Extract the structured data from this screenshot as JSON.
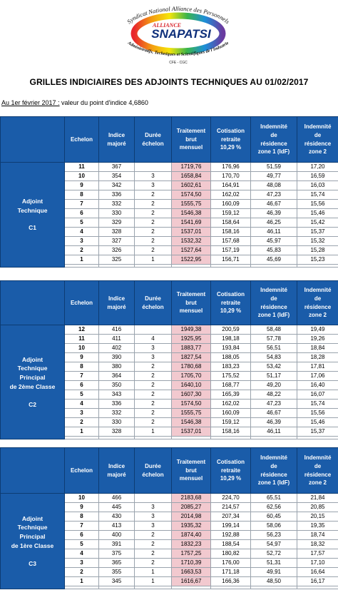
{
  "logo": {
    "top_text": "Syndicat National Alliance des Personnels",
    "brand_small": "ALLIANCE",
    "brand": "SNAPATSI",
    "arc_text": "Administratifs, Techniques et Scientifiques de l'Industrie",
    "affiliation": "CFE - CGC",
    "colors": [
      "#e8262c",
      "#f39c12",
      "#f5e50a",
      "#3bb54a",
      "#1c8fd8",
      "#6a3ba0"
    ]
  },
  "page_title": "GRILLES INDICIAIRES DES ADJOINTS TECHNIQUES AU 01/02/2017",
  "subtitle": {
    "date": "Au 1er février 2017 :",
    "text": " valeur du point d'indice 4,6860"
  },
  "header_labels": {
    "echelon": "Echelon",
    "indice": [
      "Indice",
      "majoré"
    ],
    "duree": [
      "Durée",
      "échelon"
    ],
    "traitement": [
      "Traitement",
      "brut",
      "mensuel"
    ],
    "cotisation": [
      "Cotisation",
      "retraite",
      "10,29 %"
    ],
    "idf": [
      "Indemnité",
      "de",
      "résidence",
      "zone 1 (IdF)"
    ],
    "zone2": [
      "Indemnité",
      "de",
      "résidence",
      "zone 2"
    ]
  },
  "colors": {
    "header_blue": "#1a5ca9",
    "traitement_pink": "#f2c9cf"
  },
  "grids": [
    {
      "grade_lines": [
        "Adjoint",
        "Technique"
      ],
      "grade_code": "C1",
      "rows": [
        {
          "echelon": "11",
          "indice": "367",
          "duree": "",
          "traitement": "1719,76",
          "cotisation": "176,96",
          "idf": "51,59",
          "zone2": "17,20"
        },
        {
          "echelon": "10",
          "indice": "354",
          "duree": "3",
          "traitement": "1658,84",
          "cotisation": "170,70",
          "idf": "49,77",
          "zone2": "16,59"
        },
        {
          "echelon": "9",
          "indice": "342",
          "duree": "3",
          "traitement": "1602,61",
          "cotisation": "164,91",
          "idf": "48,08",
          "zone2": "16,03"
        },
        {
          "echelon": "8",
          "indice": "336",
          "duree": "2",
          "traitement": "1574,50",
          "cotisation": "162,02",
          "idf": "47,23",
          "zone2": "15,74"
        },
        {
          "echelon": "7",
          "indice": "332",
          "duree": "2",
          "traitement": "1555,75",
          "cotisation": "160,09",
          "idf": "46,67",
          "zone2": "15,56"
        },
        {
          "echelon": "6",
          "indice": "330",
          "duree": "2",
          "traitement": "1546,38",
          "cotisation": "159,12",
          "idf": "46,39",
          "zone2": "15,46"
        },
        {
          "echelon": "5",
          "indice": "329",
          "duree": "2",
          "traitement": "1541,69",
          "cotisation": "158,64",
          "idf": "46,25",
          "zone2": "15,42"
        },
        {
          "echelon": "4",
          "indice": "328",
          "duree": "2",
          "traitement": "1537,01",
          "cotisation": "158,16",
          "idf": "46,11",
          "zone2": "15,37"
        },
        {
          "echelon": "3",
          "indice": "327",
          "duree": "2",
          "traitement": "1532,32",
          "cotisation": "157,68",
          "idf": "45,97",
          "zone2": "15,32"
        },
        {
          "echelon": "2",
          "indice": "326",
          "duree": "2",
          "traitement": "1527,64",
          "cotisation": "157,19",
          "idf": "45,83",
          "zone2": "15,28"
        },
        {
          "echelon": "1",
          "indice": "325",
          "duree": "1",
          "traitement": "1522,95",
          "cotisation": "156,71",
          "idf": "45,69",
          "zone2": "15,23"
        }
      ]
    },
    {
      "grade_lines": [
        "Adjoint",
        "Technique",
        "Principal",
        "de 2ème Classe"
      ],
      "grade_code": "C2",
      "rows": [
        {
          "echelon": "12",
          "indice": "416",
          "duree": "",
          "traitement": "1949,38",
          "cotisation": "200,59",
          "idf": "58,48",
          "zone2": "19,49"
        },
        {
          "echelon": "11",
          "indice": "411",
          "duree": "4",
          "traitement": "1925,95",
          "cotisation": "198,18",
          "idf": "57,78",
          "zone2": "19,26"
        },
        {
          "echelon": "10",
          "indice": "402",
          "duree": "3",
          "traitement": "1883,77",
          "cotisation": "193,84",
          "idf": "56,51",
          "zone2": "18,84"
        },
        {
          "echelon": "9",
          "indice": "390",
          "duree": "3",
          "traitement": "1827,54",
          "cotisation": "188,05",
          "idf": "54,83",
          "zone2": "18,28"
        },
        {
          "echelon": "8",
          "indice": "380",
          "duree": "2",
          "traitement": "1780,68",
          "cotisation": "183,23",
          "idf": "53,42",
          "zone2": "17,81"
        },
        {
          "echelon": "7",
          "indice": "364",
          "duree": "2",
          "traitement": "1705,70",
          "cotisation": "175,52",
          "idf": "51,17",
          "zone2": "17,06"
        },
        {
          "echelon": "6",
          "indice": "350",
          "duree": "2",
          "traitement": "1640,10",
          "cotisation": "168,77",
          "idf": "49,20",
          "zone2": "16,40"
        },
        {
          "echelon": "5",
          "indice": "343",
          "duree": "2",
          "traitement": "1607,30",
          "cotisation": "165,39",
          "idf": "48,22",
          "zone2": "16,07"
        },
        {
          "echelon": "4",
          "indice": "336",
          "duree": "2",
          "traitement": "1574,50",
          "cotisation": "162,02",
          "idf": "47,23",
          "zone2": "15,74"
        },
        {
          "echelon": "3",
          "indice": "332",
          "duree": "2",
          "traitement": "1555,75",
          "cotisation": "160,09",
          "idf": "46,67",
          "zone2": "15,56"
        },
        {
          "echelon": "2",
          "indice": "330",
          "duree": "2",
          "traitement": "1546,38",
          "cotisation": "159,12",
          "idf": "46,39",
          "zone2": "15,46"
        },
        {
          "echelon": "1",
          "indice": "328",
          "duree": "1",
          "traitement": "1537,01",
          "cotisation": "158,16",
          "idf": "46,11",
          "zone2": "15,37"
        }
      ]
    },
    {
      "grade_lines": [
        "Adjoint",
        "Technique",
        "Principal",
        "de 1ère Classe"
      ],
      "grade_code": "C3",
      "rows": [
        {
          "echelon": "10",
          "indice": "466",
          "duree": "",
          "traitement": "2183,68",
          "cotisation": "224,70",
          "idf": "65,51",
          "zone2": "21,84"
        },
        {
          "echelon": "9",
          "indice": "445",
          "duree": "3",
          "traitement": "2085,27",
          "cotisation": "214,57",
          "idf": "62,56",
          "zone2": "20,85"
        },
        {
          "echelon": "8",
          "indice": "430",
          "duree": "3",
          "traitement": "2014,98",
          "cotisation": "207,34",
          "idf": "60,45",
          "zone2": "20,15"
        },
        {
          "echelon": "7",
          "indice": "413",
          "duree": "3",
          "traitement": "1935,32",
          "cotisation": "199,14",
          "idf": "58,06",
          "zone2": "19,35"
        },
        {
          "echelon": "6",
          "indice": "400",
          "duree": "2",
          "traitement": "1874,40",
          "cotisation": "192,88",
          "idf": "56,23",
          "zone2": "18,74"
        },
        {
          "echelon": "5",
          "indice": "391",
          "duree": "2",
          "traitement": "1832,23",
          "cotisation": "188,54",
          "idf": "54,97",
          "zone2": "18,32"
        },
        {
          "echelon": "4",
          "indice": "375",
          "duree": "2",
          "traitement": "1757,25",
          "cotisation": "180,82",
          "idf": "52,72",
          "zone2": "17,57"
        },
        {
          "echelon": "3",
          "indice": "365",
          "duree": "2",
          "traitement": "1710,39",
          "cotisation": "176,00",
          "idf": "51,31",
          "zone2": "17,10"
        },
        {
          "echelon": "2",
          "indice": "355",
          "duree": "1",
          "traitement": "1663,53",
          "cotisation": "171,18",
          "idf": "49,91",
          "zone2": "16,64"
        },
        {
          "echelon": "1",
          "indice": "345",
          "duree": "1",
          "traitement": "1616,67",
          "cotisation": "166,36",
          "idf": "48,50",
          "zone2": "16,17"
        }
      ]
    }
  ]
}
